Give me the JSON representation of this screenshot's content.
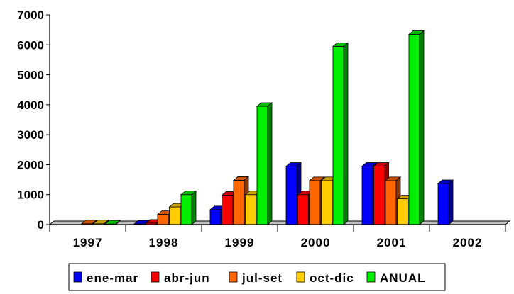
{
  "chart_data": {
    "type": "bar",
    "categories": [
      "1997",
      "1998",
      "1999",
      "2000",
      "2001",
      "2002"
    ],
    "series": [
      {
        "name": "ene-mar",
        "color": "#0000ff",
        "values": [
          0,
          20,
          500,
          1950,
          1950,
          1370
        ]
      },
      {
        "name": "abr-jun",
        "color": "#ff0000",
        "values": [
          0,
          50,
          980,
          1000,
          1950,
          0
        ]
      },
      {
        "name": "jul-set",
        "color": "#ff6600",
        "values": [
          30,
          340,
          1480,
          1470,
          1470,
          0
        ]
      },
      {
        "name": "oct-dic",
        "color": "#ffcc00",
        "values": [
          30,
          590,
          1000,
          1470,
          860,
          0
        ]
      },
      {
        "name": "ANUAL",
        "color": "#00ee00",
        "values": [
          20,
          1000,
          3950,
          5950,
          6350,
          0
        ]
      }
    ],
    "yticks": [
      "0",
      "1000",
      "2000",
      "3000",
      "4000",
      "5000",
      "6000",
      "7000"
    ],
    "ylim": [
      0,
      7000
    ],
    "legend_position": "bottom",
    "grid": false,
    "style": "3d-bar"
  }
}
